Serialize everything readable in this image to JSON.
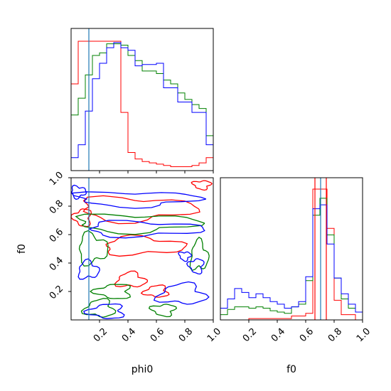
{
  "chart_data": {
    "type": "corner",
    "parameters": [
      "phi0",
      "f0"
    ],
    "colors": {
      "red": "#ff0000",
      "green": "#008000",
      "blue": "#0000ff",
      "truth": "#1f77b4"
    },
    "hist_phi0": {
      "xlim": [
        0,
        1
      ],
      "truth": 0.125,
      "bins": 20,
      "series": [
        {
          "color": "red",
          "values": [
            0.67,
            1.0,
            1.0,
            1.0,
            1.0,
            1.0,
            1.0,
            0.45,
            0.14,
            0.09,
            0.07,
            0.06,
            0.05,
            0.04,
            0.03,
            0.03,
            0.03,
            0.04,
            0.06,
            0.1
          ]
        },
        {
          "color": "green",
          "values": [
            0.43,
            0.56,
            0.74,
            0.89,
            0.91,
            0.98,
            0.98,
            0.97,
            0.89,
            0.85,
            0.77,
            0.77,
            0.75,
            0.7,
            0.67,
            0.6,
            0.55,
            0.51,
            0.48,
            0.27
          ]
        },
        {
          "color": "blue",
          "values": [
            0.1,
            0.2,
            0.46,
            0.71,
            0.83,
            0.95,
            0.99,
            0.95,
            0.93,
            0.81,
            0.82,
            0.82,
            0.83,
            0.64,
            0.64,
            0.53,
            0.53,
            0.45,
            0.45,
            0.2
          ]
        }
      ]
    },
    "hist_f0": {
      "xlim": [
        0,
        1
      ],
      "truths": [
        {
          "color": "red",
          "value": 0.665
        },
        {
          "color": "truth",
          "value": 0.705
        },
        {
          "color": "red",
          "value": 0.745
        }
      ],
      "series": [
        {
          "color": "red",
          "values": [
            0.0,
            0.0,
            0.0,
            0.0,
            0.01,
            0.01,
            0.01,
            0.01,
            0.01,
            0.01,
            0.03,
            0.03,
            0.05,
            1.0,
            1.0,
            0.7,
            0.15,
            0.04,
            0.04,
            0.0
          ]
        },
        {
          "color": "green",
          "values": [
            0.04,
            0.08,
            0.1,
            0.1,
            0.09,
            0.1,
            0.09,
            0.07,
            0.06,
            0.05,
            0.1,
            0.12,
            0.3,
            0.8,
            0.93,
            0.65,
            0.32,
            0.16,
            0.09,
            0.06
          ]
        },
        {
          "color": "blue",
          "values": [
            0.09,
            0.16,
            0.24,
            0.21,
            0.17,
            0.2,
            0.17,
            0.14,
            0.12,
            0.09,
            0.1,
            0.14,
            0.33,
            0.85,
            0.88,
            0.58,
            0.32,
            0.2,
            0.12,
            0.06
          ]
        }
      ]
    },
    "joint": {
      "xlabel": "phi0",
      "ylabel": "f0",
      "xlim": [
        0,
        1
      ],
      "ylim": [
        0,
        1
      ],
      "truth_x": 0.125
    },
    "x_ticks": [
      "0.2",
      "0.4",
      "0.6",
      "0.8",
      "1.0"
    ],
    "y_ticks": [
      "0.2",
      "0.4",
      "0.6",
      "0.8",
      "1.0"
    ],
    "x_tick_values": [
      0.2,
      0.4,
      0.6,
      0.8,
      1.0
    ],
    "y_tick_values": [
      0.2,
      0.4,
      0.6,
      0.8,
      1.0
    ],
    "f0_xlabel": "f0"
  }
}
